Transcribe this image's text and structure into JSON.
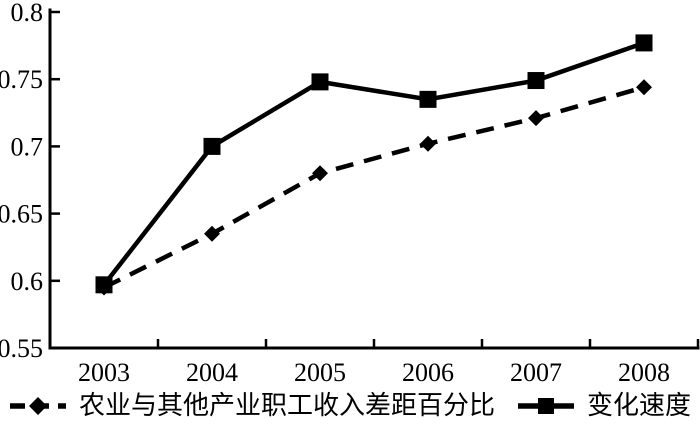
{
  "figure": {
    "background": "#ffffff",
    "ink_color": "#000000"
  },
  "chart_data": {
    "type": "line",
    "categories": [
      "2003",
      "2004",
      "2005",
      "2006",
      "2007",
      "2008"
    ],
    "series": [
      {
        "name": "农业与其他产业职工收入差距百分比",
        "marker": "diamond",
        "line_style": "dashed",
        "color": "#000000",
        "values": [
          0.595,
          0.635,
          0.68,
          0.702,
          0.721,
          0.744
        ]
      },
      {
        "name": "变化速度",
        "marker": "square",
        "line_style": "solid",
        "color": "#000000",
        "values": [
          0.597,
          0.7,
          0.748,
          0.735,
          0.749,
          0.777
        ]
      }
    ],
    "title": "",
    "xlabel": "",
    "ylabel": "",
    "ylim": [
      0.55,
      0.8
    ],
    "y_ticks": [
      0.55,
      0.6,
      0.65,
      0.7,
      0.75,
      0.8
    ],
    "y_tick_labels": [
      "0.55",
      "0.6",
      "0.65",
      "0.7",
      "0.75",
      "0.8"
    ],
    "grid": false,
    "legend_position": "bottom"
  }
}
